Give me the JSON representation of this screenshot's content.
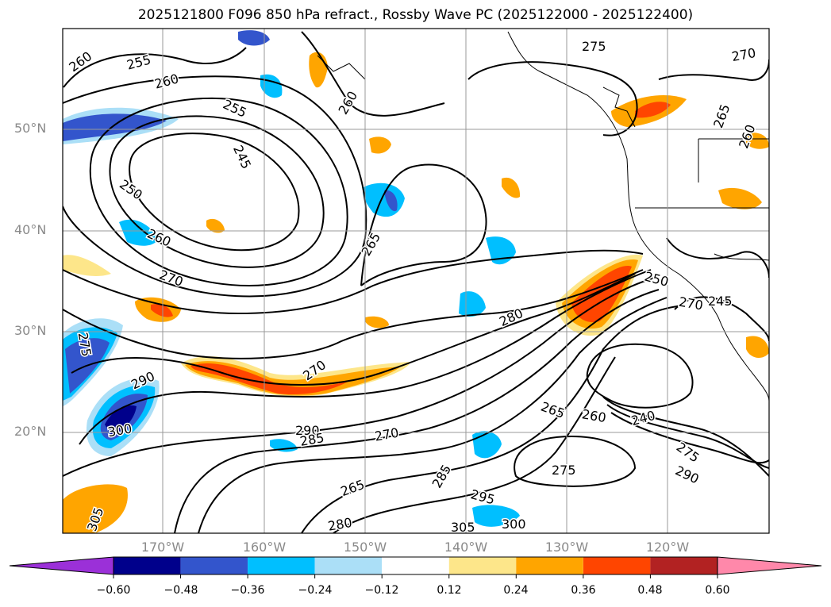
{
  "title": "2025121800 F096 850 hPa refract., Rossby Wave PC (2025122000 - 2025122400)",
  "latitude_labels": [
    "50°N",
    "40°N",
    "30°N",
    "20°N"
  ],
  "longitude_labels": [
    "170°W",
    "160°W",
    "150°W",
    "140°W",
    "130°W",
    "120°W"
  ],
  "contour_labels": [
    "260",
    "255",
    "260",
    "255",
    "245",
    "250",
    "260",
    "270",
    "275",
    "290",
    "300",
    "305",
    "260",
    "265",
    "270",
    "280",
    "290",
    "285",
    "270",
    "265",
    "285",
    "295",
    "280",
    "305",
    "300",
    "275",
    "275",
    "270",
    "265",
    "260",
    "250",
    "270",
    "245",
    "265",
    "260",
    "240",
    "275",
    "290"
  ],
  "colorbar": {
    "ticks": [
      "−0.60",
      "−0.48",
      "−0.36",
      "−0.24",
      "−0.12",
      "0.12",
      "0.24",
      "0.36",
      "0.48",
      "0.60"
    ],
    "colors": [
      "#9b30d8",
      "#00008b",
      "#3355cc",
      "#00bfff",
      "#abdff7",
      "#ffffff",
      "#fde68a",
      "#ffa500",
      "#ff4500",
      "#b22222",
      "#ff88aa"
    ]
  }
}
